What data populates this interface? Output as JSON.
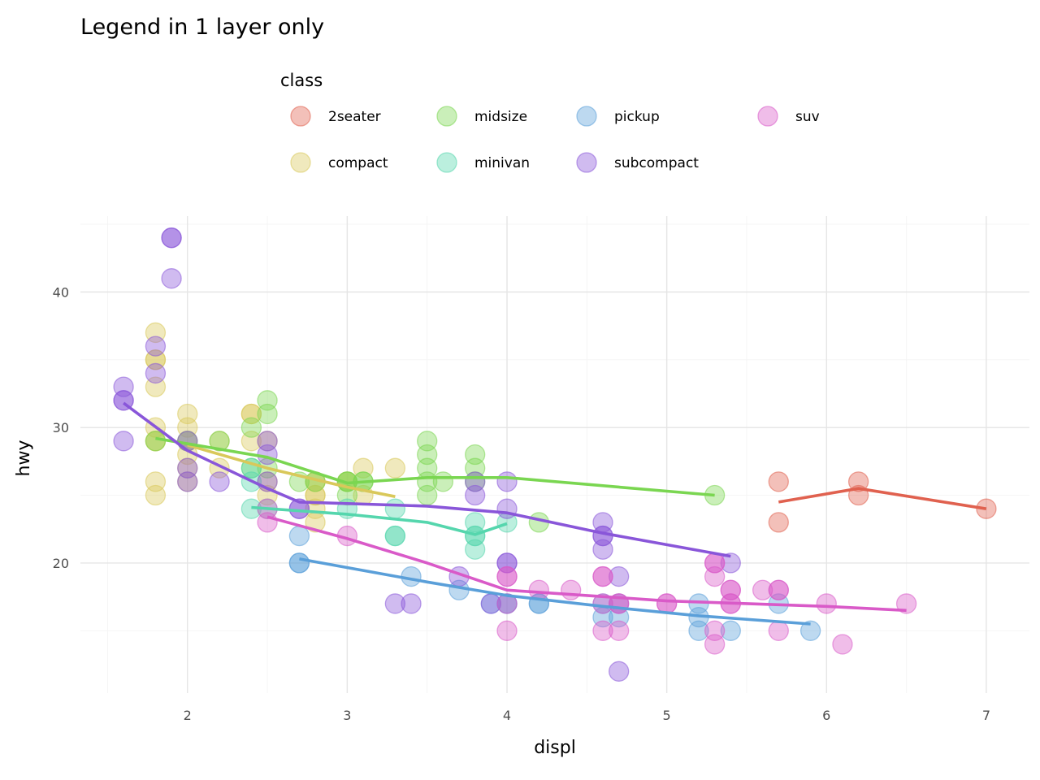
{
  "chart_data": {
    "type": "scatter",
    "title": "Legend in 1 layer only",
    "xlabel": "displ",
    "ylabel": "hwy",
    "xlim": [
      1.33,
      7.27
    ],
    "ylim": [
      10.4,
      45.6
    ],
    "xticks": [
      2,
      3,
      4,
      5,
      6,
      7
    ],
    "yticks": [
      20,
      30,
      40
    ],
    "grid": true,
    "legend": {
      "title": "class",
      "placement": "top",
      "rows": 2
    },
    "point_opacity": 0.4,
    "series": [
      {
        "name": "2seater",
        "color": "#e0614f",
        "points": [
          [
            5.7,
            26
          ],
          [
            5.7,
            23
          ],
          [
            6.2,
            26
          ],
          [
            6.2,
            25
          ],
          [
            7.0,
            24
          ]
        ],
        "trend": [
          [
            5.7,
            24.5
          ],
          [
            6.2,
            25.5
          ],
          [
            7.0,
            24
          ]
        ]
      },
      {
        "name": "compact",
        "color": "#d9c85a",
        "points": [
          [
            1.8,
            29
          ],
          [
            1.8,
            29
          ],
          [
            2.0,
            31
          ],
          [
            2.0,
            30
          ],
          [
            2.8,
            26
          ],
          [
            2.8,
            26
          ],
          [
            3.1,
            27
          ],
          [
            1.8,
            26
          ],
          [
            1.8,
            25
          ],
          [
            2.0,
            28
          ],
          [
            2.0,
            27
          ],
          [
            2.8,
            25
          ],
          [
            2.8,
            25
          ],
          [
            3.1,
            25
          ],
          [
            2.2,
            27
          ],
          [
            2.2,
            29
          ],
          [
            2.4,
            31
          ],
          [
            2.4,
            31
          ],
          [
            3.0,
            26
          ],
          [
            3.0,
            26
          ],
          [
            3.3,
            27
          ],
          [
            1.8,
            37
          ],
          [
            1.8,
            35
          ],
          [
            1.8,
            35
          ],
          [
            1.8,
            33
          ],
          [
            1.8,
            30
          ],
          [
            2.0,
            26
          ],
          [
            2.0,
            29
          ],
          [
            2.4,
            29
          ],
          [
            2.5,
            29
          ],
          [
            2.5,
            26
          ],
          [
            2.5,
            25
          ],
          [
            2.8,
            24
          ],
          [
            2.8,
            23
          ]
        ],
        "trend": [
          [
            2.0,
            28.7
          ],
          [
            2.5,
            27
          ],
          [
            3.0,
            25.6
          ],
          [
            3.3,
            24.9
          ]
        ]
      },
      {
        "name": "midsize",
        "color": "#7ad651",
        "points": [
          [
            2.4,
            30
          ],
          [
            2.4,
            27
          ],
          [
            2.5,
            32
          ],
          [
            2.5,
            31
          ],
          [
            2.5,
            27
          ],
          [
            3.0,
            26
          ],
          [
            3.0,
            25
          ],
          [
            3.1,
            26
          ],
          [
            3.5,
            29
          ],
          [
            3.5,
            28
          ],
          [
            3.5,
            27
          ],
          [
            3.5,
            26
          ],
          [
            3.6,
            26
          ],
          [
            3.8,
            28
          ],
          [
            3.8,
            27
          ],
          [
            3.8,
            26
          ],
          [
            4.2,
            23
          ],
          [
            5.3,
            25
          ],
          [
            1.8,
            29
          ],
          [
            2.0,
            29
          ],
          [
            2.2,
            29
          ],
          [
            2.7,
            26
          ],
          [
            2.8,
            26
          ],
          [
            3.0,
            26
          ],
          [
            3.1,
            26
          ],
          [
            3.5,
            25
          ]
        ],
        "trend": [
          [
            1.8,
            29.2
          ],
          [
            2.5,
            27.8
          ],
          [
            3.0,
            25.9
          ],
          [
            3.5,
            26.3
          ],
          [
            4.0,
            26.3
          ],
          [
            5.3,
            25
          ]
        ]
      },
      {
        "name": "minivan",
        "color": "#55d6ad",
        "points": [
          [
            2.4,
            24
          ],
          [
            3.0,
            24
          ],
          [
            3.3,
            24
          ],
          [
            3.3,
            22
          ],
          [
            3.3,
            22
          ],
          [
            3.8,
            23
          ],
          [
            3.8,
            22
          ],
          [
            3.8,
            21
          ],
          [
            4.0,
            23
          ],
          [
            3.8,
            22
          ],
          [
            2.4,
            26
          ],
          [
            2.4,
            27
          ],
          [
            2.5,
            24
          ]
        ],
        "trend": [
          [
            2.4,
            24.1
          ],
          [
            3.0,
            23.6
          ],
          [
            3.5,
            23
          ],
          [
            3.8,
            22.1
          ],
          [
            4.0,
            22.9
          ]
        ]
      },
      {
        "name": "pickup",
        "color": "#5a9fd9",
        "points": [
          [
            2.7,
            20
          ],
          [
            2.7,
            20
          ],
          [
            2.7,
            22
          ],
          [
            3.4,
            19
          ],
          [
            3.7,
            18
          ],
          [
            3.9,
            17
          ],
          [
            4.0,
            17
          ],
          [
            4.0,
            17
          ],
          [
            4.2,
            17
          ],
          [
            4.2,
            17
          ],
          [
            4.6,
            16
          ],
          [
            4.6,
            17
          ],
          [
            4.7,
            16
          ],
          [
            4.7,
            17
          ],
          [
            5.2,
            15
          ],
          [
            5.2,
            16
          ],
          [
            5.2,
            17
          ],
          [
            5.4,
            15
          ],
          [
            5.7,
            17
          ],
          [
            5.9,
            15
          ]
        ],
        "trend": [
          [
            2.7,
            20.3
          ],
          [
            3.5,
            18.6
          ],
          [
            4.0,
            17.6
          ],
          [
            4.6,
            16.8
          ],
          [
            5.2,
            16.1
          ],
          [
            5.9,
            15.5
          ]
        ]
      },
      {
        "name": "subcompact",
        "color": "#8956d9",
        "points": [
          [
            1.6,
            33
          ],
          [
            1.6,
            32
          ],
          [
            1.6,
            32
          ],
          [
            1.6,
            29
          ],
          [
            1.8,
            36
          ],
          [
            1.8,
            34
          ],
          [
            1.9,
            44
          ],
          [
            1.9,
            44
          ],
          [
            1.9,
            41
          ],
          [
            2.0,
            29
          ],
          [
            2.0,
            26
          ],
          [
            2.0,
            27
          ],
          [
            2.2,
            26
          ],
          [
            2.5,
            29
          ],
          [
            2.5,
            28
          ],
          [
            2.5,
            26
          ],
          [
            2.7,
            24
          ],
          [
            2.7,
            24
          ],
          [
            3.3,
            17
          ],
          [
            3.4,
            17
          ],
          [
            3.7,
            19
          ],
          [
            3.8,
            26
          ],
          [
            3.8,
            25
          ],
          [
            3.9,
            17
          ],
          [
            4.0,
            26
          ],
          [
            4.0,
            24
          ],
          [
            4.0,
            20
          ],
          [
            4.0,
            20
          ],
          [
            4.6,
            23
          ],
          [
            4.6,
            22
          ],
          [
            4.6,
            22
          ],
          [
            4.6,
            21
          ],
          [
            4.7,
            19
          ],
          [
            4.7,
            12
          ],
          [
            5.4,
            20
          ]
        ],
        "trend": [
          [
            1.6,
            31.8
          ],
          [
            2.0,
            28.3
          ],
          [
            2.5,
            25.5
          ],
          [
            2.7,
            24.5
          ],
          [
            3.5,
            24.2
          ],
          [
            4.0,
            23.7
          ],
          [
            4.6,
            22.2
          ],
          [
            5.4,
            20.5
          ]
        ]
      },
      {
        "name": "suv",
        "color": "#d95ac8",
        "points": [
          [
            2.5,
            23
          ],
          [
            2.5,
            24
          ],
          [
            3.0,
            22
          ],
          [
            4.0,
            19
          ],
          [
            4.0,
            19
          ],
          [
            4.0,
            17
          ],
          [
            4.0,
            15
          ],
          [
            4.2,
            18
          ],
          [
            4.4,
            18
          ],
          [
            4.6,
            19
          ],
          [
            4.6,
            19
          ],
          [
            4.6,
            17
          ],
          [
            4.6,
            15
          ],
          [
            4.7,
            17
          ],
          [
            4.7,
            17
          ],
          [
            4.7,
            15
          ],
          [
            5.0,
            17
          ],
          [
            5.0,
            17
          ],
          [
            5.3,
            20
          ],
          [
            5.3,
            20
          ],
          [
            5.3,
            19
          ],
          [
            5.3,
            15
          ],
          [
            5.3,
            14
          ],
          [
            5.4,
            18
          ],
          [
            5.4,
            18
          ],
          [
            5.4,
            17
          ],
          [
            5.4,
            17
          ],
          [
            5.6,
            18
          ],
          [
            5.7,
            18
          ],
          [
            5.7,
            18
          ],
          [
            5.7,
            15
          ],
          [
            6.0,
            17
          ],
          [
            6.1,
            14
          ],
          [
            6.5,
            17
          ]
        ],
        "trend": [
          [
            2.5,
            23.4
          ],
          [
            3.0,
            21.8
          ],
          [
            3.5,
            20
          ],
          [
            4.0,
            18
          ],
          [
            4.5,
            17.6
          ],
          [
            5.0,
            17.2
          ],
          [
            5.5,
            17
          ],
          [
            6.0,
            16.8
          ],
          [
            6.5,
            16.5
          ]
        ]
      }
    ]
  }
}
